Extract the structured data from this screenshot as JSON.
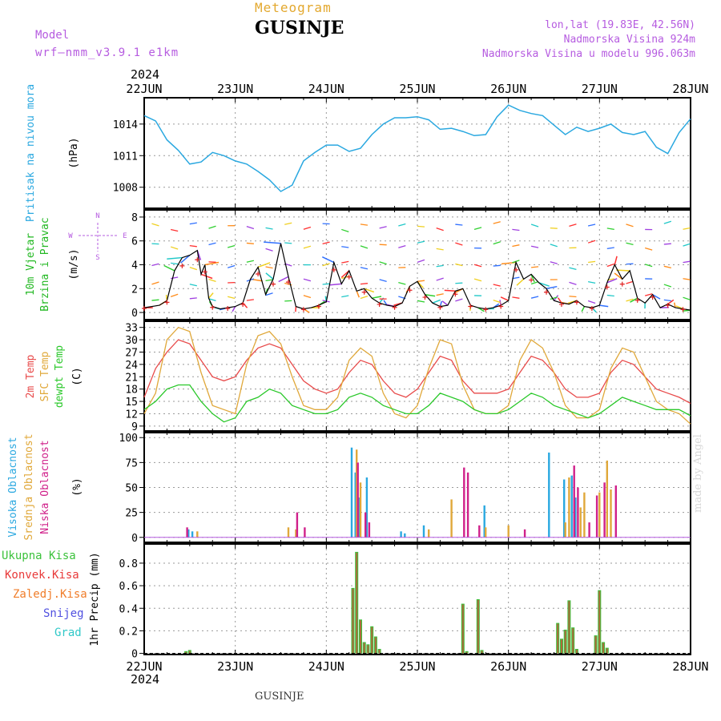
{
  "header": {
    "subtitle": "Meteogram",
    "title": "GUSINJE",
    "model_label": "Model",
    "model_name": "wrf—nmm_v3.9.1  e1km",
    "location": "lon,lat (19.83E, 42.56N)",
    "altitude": "Nadmorska Visina 924m",
    "model_altitude": "Nadmorska Visina u modelu 996.063m",
    "footer_station": "GUSINJE",
    "credit": "made by Angel",
    "year": "2024"
  },
  "x_axis": {
    "ticks": [
      "22JUN",
      "23JUN",
      "24JUN",
      "25JUN",
      "26JUN",
      "27JUN",
      "28JUN"
    ],
    "range_hours": [
      0,
      144
    ]
  },
  "colors": {
    "pressure": "#2aa8e0",
    "temp2m": "#e84a4a",
    "sfc": "#e0a83a",
    "dewpt": "#2ac82a",
    "high": "#2aa8e0",
    "mid": "#e0a83a",
    "low": "#d0208a",
    "total": "#3cc23c",
    "conv": "#e83a3a",
    "frz": "#f07d2a",
    "snow": "#5050e0",
    "grad": "#30c8c8",
    "wind_label": "#22b822",
    "axis_purple": "#b65ce0"
  },
  "chart_data": [
    {
      "type": "line",
      "panel": "pressure",
      "ylabel_lines": [
        "Pritisak na nivou mora",
        "(hPa)"
      ],
      "ylim": [
        1006,
        1016.5
      ],
      "yticks": [
        1008,
        1011,
        1014
      ],
      "series": [
        {
          "x": [
            0,
            3,
            6,
            9,
            12,
            15,
            18,
            21,
            24,
            27,
            30,
            33,
            36,
            39,
            42,
            45,
            48,
            51,
            54,
            57,
            60,
            63,
            66,
            69,
            72,
            75,
            78,
            81,
            84,
            87,
            90,
            93,
            96,
            99,
            102,
            105,
            108,
            111,
            114,
            117,
            120,
            123,
            126,
            129,
            132,
            135,
            138,
            141,
            144
          ],
          "values": [
            1014.8,
            1014.3,
            1012.5,
            1011.5,
            1010.2,
            1010.4,
            1011.3,
            1011.0,
            1010.5,
            1010.2,
            1009.5,
            1008.7,
            1007.6,
            1008.2,
            1010.5,
            1011.3,
            1012.0,
            1012.0,
            1011.4,
            1011.7,
            1013.0,
            1014.0,
            1014.6,
            1014.6,
            1014.7,
            1014.4,
            1013.5,
            1013.6,
            1013.3,
            1012.9,
            1013.0,
            1014.7,
            1015.8,
            1015.3,
            1015.0,
            1014.8,
            1013.9,
            1013.0,
            1013.7,
            1013.3,
            1013.6,
            1014.0,
            1013.2,
            1013.0,
            1013.3,
            1011.8,
            1011.2,
            1013.2,
            1014.5
          ]
        }
      ]
    },
    {
      "type": "line",
      "panel": "wind",
      "ylabel_lines": [
        "10m Vjetar",
        "Brzina i Pravac",
        "(m/s)"
      ],
      "ylim": [
        -0.6,
        8.6
      ],
      "yticks": [
        0,
        2,
        4,
        6,
        8
      ],
      "compass": [
        "N",
        "W",
        "E",
        "S"
      ],
      "series": [
        {
          "x": [
            0,
            4,
            6,
            8,
            10,
            12,
            14,
            15,
            16,
            17,
            18,
            20,
            22,
            24,
            26,
            28,
            30,
            32,
            34,
            36,
            38,
            40,
            42,
            44,
            46,
            48,
            50,
            52,
            54,
            56,
            58,
            60,
            62,
            64,
            66,
            68,
            70,
            72,
            74,
            76,
            78,
            80,
            82,
            84,
            86,
            88,
            90,
            92,
            94,
            96,
            98,
            100,
            102,
            104,
            106,
            108,
            110,
            112,
            114,
            116,
            118,
            120,
            122,
            124,
            126,
            128,
            130,
            132,
            134,
            136,
            138,
            140,
            142,
            144
          ],
          "values": [
            0.4,
            0.6,
            1.0,
            3.5,
            4.6,
            4.8,
            5.2,
            3.2,
            4.0,
            1.2,
            0.5,
            0.3,
            0.4,
            0.5,
            0.8,
            2.8,
            3.8,
            1.5,
            2.8,
            5.8,
            3.0,
            0.5,
            0.3,
            0.4,
            0.6,
            0.9,
            4.2,
            2.4,
            3.5,
            1.8,
            2.0,
            1.2,
            0.8,
            0.6,
            0.5,
            0.8,
            2.2,
            2.6,
            1.5,
            0.8,
            0.5,
            0.6,
            1.8,
            2.0,
            0.6,
            0.4,
            0.3,
            0.4,
            0.6,
            1.0,
            4.2,
            2.8,
            3.2,
            2.5,
            2.0,
            1.0,
            0.8,
            0.7,
            1.0,
            0.5,
            0.4,
            0.6,
            2.5,
            4.0,
            2.8,
            3.5,
            1.2,
            0.8,
            1.5,
            0.4,
            0.7,
            0.4,
            0.3,
            0.2
          ]
        }
      ]
    },
    {
      "type": "line",
      "panel": "temperature",
      "ylabel_lines": [
        "2m Temp",
        "SFC Temp",
        "dewpt Temp",
        "(C)"
      ],
      "ylim": [
        7.8,
        34.5
      ],
      "yticks": [
        9,
        12,
        15,
        18,
        21,
        24,
        27,
        30,
        33
      ],
      "series": [
        {
          "name": "2m Temp",
          "x": [
            0,
            3,
            6,
            9,
            12,
            15,
            18,
            21,
            24,
            27,
            30,
            33,
            36,
            39,
            42,
            45,
            48,
            51,
            54,
            57,
            60,
            63,
            66,
            69,
            72,
            75,
            78,
            81,
            84,
            87,
            90,
            93,
            96,
            99,
            102,
            105,
            108,
            111,
            114,
            117,
            120,
            123,
            126,
            129,
            132,
            135,
            138,
            141,
            144
          ],
          "values": [
            16,
            23,
            27,
            30,
            29,
            25,
            21,
            20,
            21,
            25,
            28,
            29,
            28,
            24,
            20,
            18,
            17,
            18,
            22,
            25,
            24,
            20,
            17,
            16,
            18,
            22,
            26,
            25,
            20,
            17,
            17,
            17,
            18,
            22,
            26,
            25,
            22,
            18,
            16,
            16,
            17,
            22,
            25,
            24,
            21,
            18,
            17,
            16,
            14.5
          ]
        },
        {
          "name": "SFC Temp",
          "x": [
            0,
            3,
            6,
            9,
            12,
            15,
            18,
            21,
            24,
            27,
            30,
            33,
            36,
            39,
            42,
            45,
            48,
            51,
            54,
            57,
            60,
            63,
            66,
            69,
            72,
            75,
            78,
            81,
            84,
            87,
            90,
            93,
            96,
            99,
            102,
            105,
            108,
            111,
            114,
            117,
            120,
            123,
            126,
            129,
            132,
            135,
            138,
            141,
            144
          ],
          "values": [
            12,
            17,
            30,
            33,
            32,
            22,
            14,
            13,
            12,
            24,
            31,
            32,
            29,
            21,
            14,
            13,
            13,
            16,
            25,
            28,
            26,
            17,
            12,
            11,
            14,
            23,
            30,
            29,
            19,
            13,
            12,
            12,
            14,
            25,
            30,
            28,
            22,
            14,
            11,
            11,
            13,
            23,
            28,
            27,
            21,
            15,
            13,
            12,
            9.5
          ]
        },
        {
          "name": "dewpt Temp",
          "x": [
            0,
            3,
            6,
            9,
            12,
            15,
            18,
            21,
            24,
            27,
            30,
            33,
            36,
            39,
            42,
            45,
            48,
            51,
            54,
            57,
            60,
            63,
            66,
            69,
            72,
            75,
            78,
            81,
            84,
            87,
            90,
            93,
            96,
            99,
            102,
            105,
            108,
            111,
            114,
            117,
            120,
            123,
            126,
            129,
            132,
            135,
            138,
            141,
            144
          ],
          "values": [
            13,
            15,
            18,
            19,
            19,
            15,
            12,
            10,
            11,
            15,
            16,
            18,
            17,
            14,
            13,
            12,
            12,
            13,
            16,
            17,
            16,
            14,
            13,
            12,
            12,
            14,
            17,
            16,
            15,
            13,
            12,
            12,
            13,
            15,
            17,
            16,
            14,
            13,
            12,
            11,
            12,
            14,
            16,
            15,
            14,
            13,
            13,
            13,
            11.5
          ]
        }
      ]
    },
    {
      "type": "bar",
      "panel": "cloud",
      "ylabel_lines": [
        "Visoka Oblacnost",
        "Srednja Oblacnost",
        "Niska  Oblacnost",
        "(%)"
      ],
      "ylim": [
        -5,
        105
      ],
      "yticks": [
        0,
        25,
        50,
        75,
        100
      ],
      "series": [
        {
          "name": "Visoka Oblacnost",
          "x": [
            12,
            13,
            55,
            56,
            57,
            59,
            68,
            69,
            74,
            90,
            107,
            111,
            113,
            114
          ],
          "values": [
            8,
            6,
            90,
            65,
            40,
            60,
            6,
            4,
            12,
            32,
            85,
            58,
            62,
            40
          ]
        },
        {
          "name": "Srednja Oblacnost",
          "x": [
            14,
            38,
            40,
            56,
            57,
            75,
            81,
            90,
            96,
            111,
            112,
            115,
            116,
            120,
            122,
            123
          ],
          "values": [
            6,
            10,
            8,
            88,
            55,
            8,
            38,
            10,
            12,
            15,
            60,
            30,
            45,
            45,
            77,
            48
          ]
        },
        {
          "name": "Niska  Oblacnost",
          "x": [
            11,
            40,
            42,
            56,
            58,
            59,
            84,
            85,
            88,
            100,
            113,
            114,
            117,
            119,
            121,
            124
          ],
          "values": [
            10,
            25,
            10,
            75,
            25,
            15,
            70,
            65,
            12,
            8,
            72,
            50,
            15,
            42,
            55,
            52
          ]
        }
      ]
    },
    {
      "type": "bar",
      "panel": "precip",
      "ylabel_lines": [
        "1hr Precip (mm)"
      ],
      "legend": [
        "Ukupna  Kisa",
        "Konvek.Kisa",
        "Zaledj.Kisa",
        "Snijeg",
        "Grad"
      ],
      "ylim": [
        -0.01,
        0.97
      ],
      "yticks": [
        0,
        0.2,
        0.4,
        0.6,
        0.8
      ],
      "series": [
        {
          "name": "Ukupna  Kisa",
          "x": [
            11,
            12,
            55,
            56,
            57,
            58,
            59,
            60,
            61,
            62,
            84,
            85,
            88,
            89,
            109,
            110,
            111,
            112,
            113,
            114,
            119,
            120,
            121,
            122
          ],
          "values": [
            0.02,
            0.03,
            0.58,
            0.9,
            0.3,
            0.1,
            0.08,
            0.24,
            0.15,
            0.04,
            0.44,
            0.02,
            0.48,
            0.03,
            0.27,
            0.13,
            0.21,
            0.47,
            0.23,
            0.04,
            0.16,
            0.56,
            0.1,
            0.05
          ]
        }
      ]
    }
  ]
}
